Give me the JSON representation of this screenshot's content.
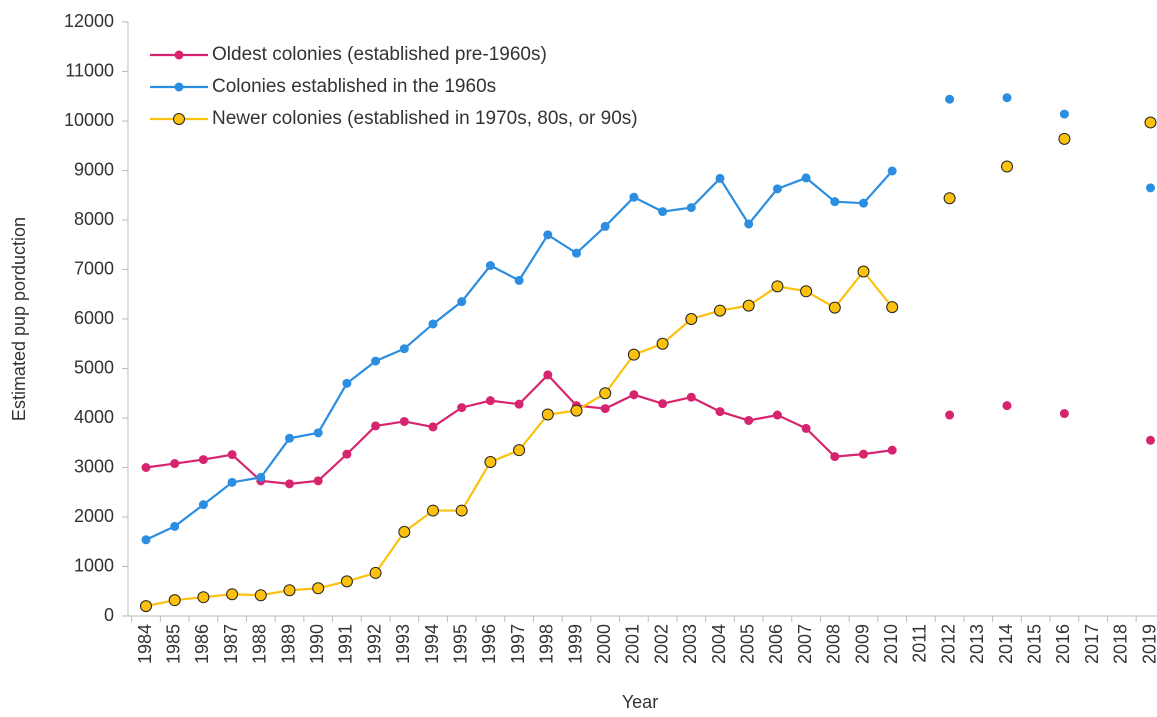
{
  "chart_data": {
    "type": "line",
    "x_label": "Year",
    "y_label": "Estimated pup porduction",
    "categories": [
      "1984",
      "1985",
      "1986",
      "1987",
      "1988",
      "1989",
      "1990",
      "1991",
      "1992",
      "1993",
      "1994",
      "1995",
      "1996",
      "1997",
      "1998",
      "1999",
      "2000",
      "2001",
      "2002",
      "2003",
      "2004",
      "2005",
      "2006",
      "2007",
      "2008",
      "2009",
      "2010",
      "2011",
      "2012",
      "2013",
      "2014",
      "2015",
      "2016",
      "2017",
      "2018",
      "2019"
    ],
    "series": [
      {
        "name": "Oldest colonies (established pre-1960s)",
        "color": "#d6246e",
        "marker_edge": null,
        "values": [
          3000,
          3080,
          3160,
          3260,
          2730,
          2670,
          2730,
          3270,
          3840,
          3930,
          3820,
          4210,
          4350,
          4280,
          4870,
          4250,
          4190,
          4470,
          4290,
          4420,
          4130,
          3950,
          4060,
          3790,
          3220,
          3270,
          3350,
          null,
          4060,
          null,
          4250,
          null,
          4090,
          null,
          null,
          3550
        ]
      },
      {
        "name": "Colonies established in the 1960s",
        "color": "#2b8ee0",
        "marker_edge": null,
        "values": [
          1540,
          1810,
          2250,
          2700,
          2800,
          3590,
          3700,
          4700,
          5150,
          5400,
          5900,
          6350,
          7080,
          6780,
          7700,
          7330,
          7870,
          8460,
          8170,
          8250,
          8840,
          7920,
          8630,
          8850,
          8370,
          8340,
          8990,
          null,
          10440,
          null,
          10470,
          null,
          10140,
          null,
          null,
          8650
        ]
      },
      {
        "name": "Newer colonies (established in 1970s, 80s, or 90s)",
        "color": "#fcc10f",
        "marker_edge": "#222222",
        "values": [
          200,
          320,
          380,
          440,
          420,
          520,
          560,
          700,
          870,
          1700,
          2130,
          2130,
          3110,
          3350,
          4070,
          4150,
          4500,
          5280,
          5500,
          6000,
          6170,
          6270,
          6660,
          6560,
          6230,
          6960,
          6240,
          null,
          8440,
          null,
          9080,
          null,
          9640,
          null,
          null,
          9970
        ]
      }
    ],
    "ylim": [
      0,
      12000
    ],
    "yticks": [
      0,
      1000,
      2000,
      3000,
      4000,
      5000,
      6000,
      7000,
      8000,
      9000,
      10000,
      11000,
      12000
    ],
    "grid": false,
    "legend": "upper left"
  }
}
